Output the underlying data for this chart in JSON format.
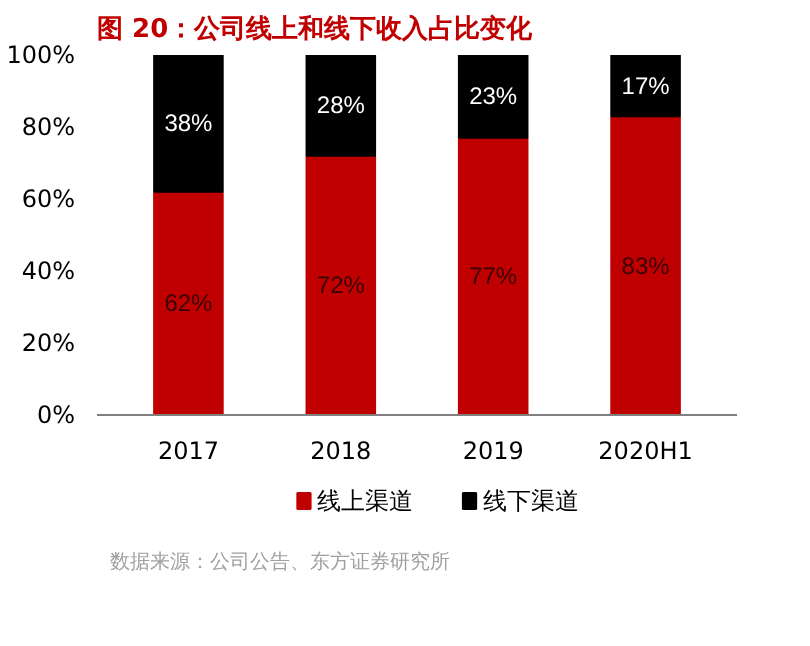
{
  "chart_data": {
    "type": "bar",
    "stacked": true,
    "title": "图 20：公司线上和线下收入占比变化",
    "categories": [
      "2017",
      "2018",
      "2019",
      "2020H1"
    ],
    "series": [
      {
        "name": "线上渠道",
        "color": "#c00000",
        "values": [
          62,
          72,
          77,
          83
        ],
        "value_labels": [
          "62%",
          "72%",
          "77%",
          "83%"
        ]
      },
      {
        "name": "线下渠道",
        "color": "#000000",
        "values": [
          38,
          28,
          23,
          17
        ],
        "value_labels": [
          "38%",
          "28%",
          "23%",
          "17%"
        ]
      }
    ],
    "ylim": [
      0,
      100
    ],
    "yticks": [
      {
        "value": 0,
        "label": "0%"
      },
      {
        "value": 20,
        "label": "20%"
      },
      {
        "value": 40,
        "label": "40%"
      },
      {
        "value": 60,
        "label": "60%"
      },
      {
        "value": 80,
        "label": "80%"
      },
      {
        "value": 100,
        "label": "100%"
      }
    ],
    "grid": false,
    "legend": "bottom",
    "annotations": [
      "数据来源：公司公告、东方证券研究所"
    ]
  }
}
